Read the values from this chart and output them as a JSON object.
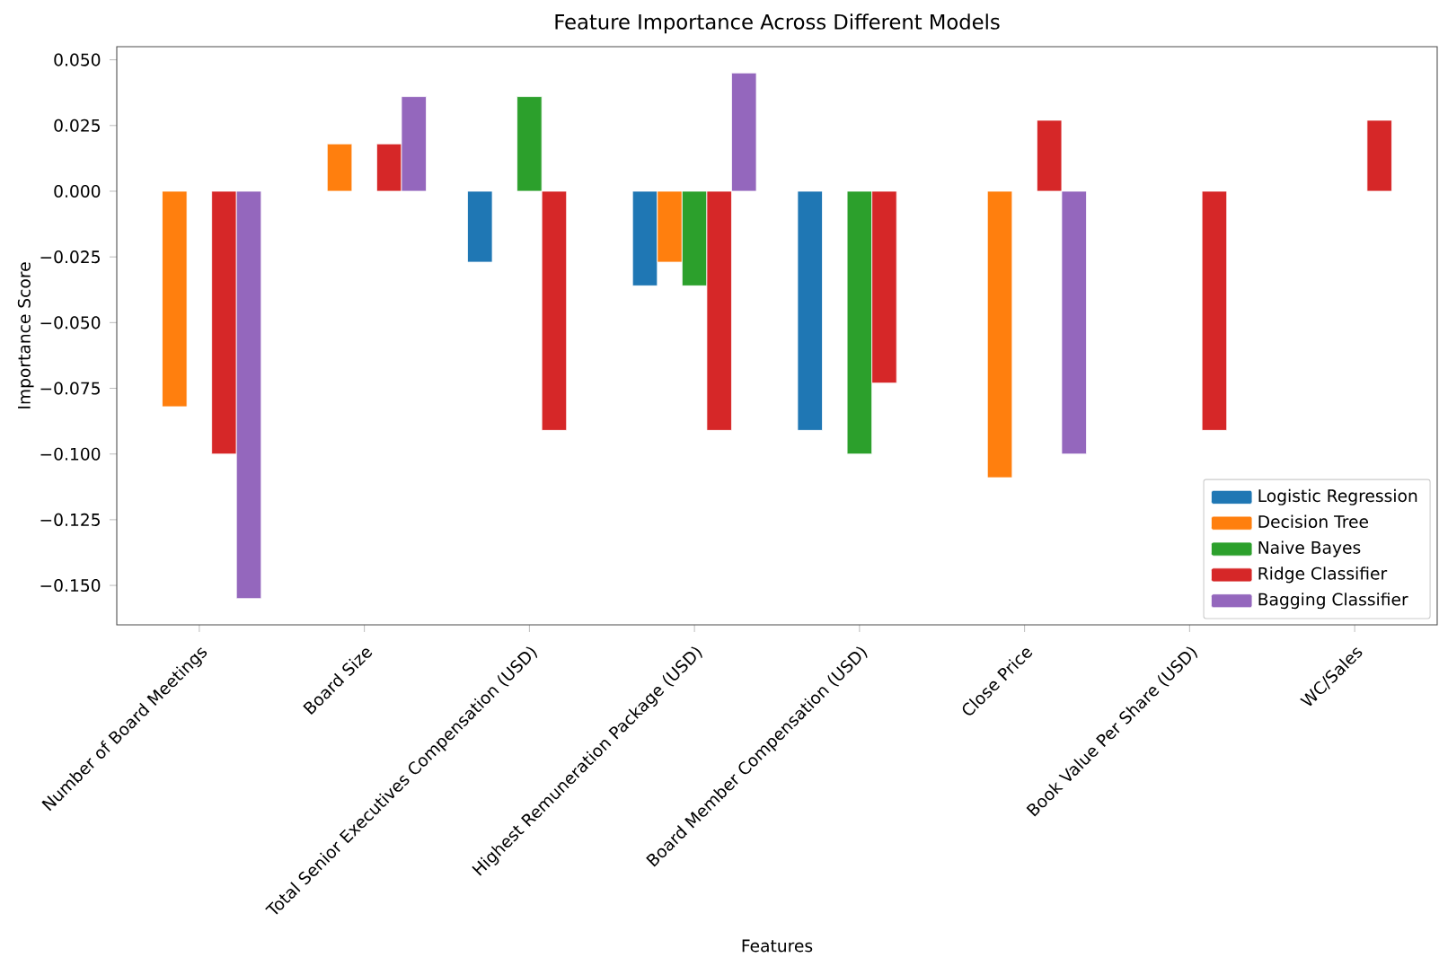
{
  "chart_data": {
    "type": "bar",
    "title": "Feature Importance Across Different Models",
    "xlabel": "Features",
    "ylabel": "Importance Score",
    "categories": [
      "Number of Board Meetings",
      "Board Size",
      "Total Senior Executives Compensation (USD)",
      "Highest Remuneration Package (USD)",
      "Board Member Compensation (USD)",
      "Close Price",
      "Book Value Per Share (USD)",
      "WC/Sales"
    ],
    "series": [
      {
        "name": "Logistic Regression",
        "color": "#1f77b4",
        "values": [
          null,
          null,
          -0.027,
          -0.036,
          -0.091,
          null,
          null,
          null
        ]
      },
      {
        "name": "Decision Tree",
        "color": "#ff7f0e",
        "values": [
          -0.082,
          0.018,
          null,
          -0.027,
          null,
          -0.109,
          null,
          null
        ]
      },
      {
        "name": "Naive Bayes",
        "color": "#2ca02c",
        "values": [
          null,
          null,
          0.036,
          -0.036,
          -0.1,
          null,
          null,
          null
        ]
      },
      {
        "name": "Ridge Classifier",
        "color": "#d62728",
        "values": [
          -0.1,
          0.018,
          -0.091,
          -0.091,
          -0.073,
          0.027,
          -0.091,
          0.027
        ]
      },
      {
        "name": "Bagging Classifier",
        "color": "#9467bd",
        "values": [
          -0.155,
          0.036,
          null,
          0.045,
          null,
          -0.1,
          null,
          null
        ]
      }
    ],
    "ylim": [
      -0.165,
      0.055
    ],
    "yticks": [
      {
        "value": -0.15,
        "label": "−0.150"
      },
      {
        "value": -0.125,
        "label": "−0.125"
      },
      {
        "value": -0.1,
        "label": "−0.100"
      },
      {
        "value": -0.075,
        "label": "−0.075"
      },
      {
        "value": -0.05,
        "label": "−0.050"
      },
      {
        "value": -0.025,
        "label": "−0.025"
      },
      {
        "value": 0,
        "label": "0.000"
      },
      {
        "value": 0.025,
        "label": "0.025"
      },
      {
        "value": 0.05,
        "label": "0.050"
      }
    ],
    "legend": "bottom right",
    "grid": false
  }
}
